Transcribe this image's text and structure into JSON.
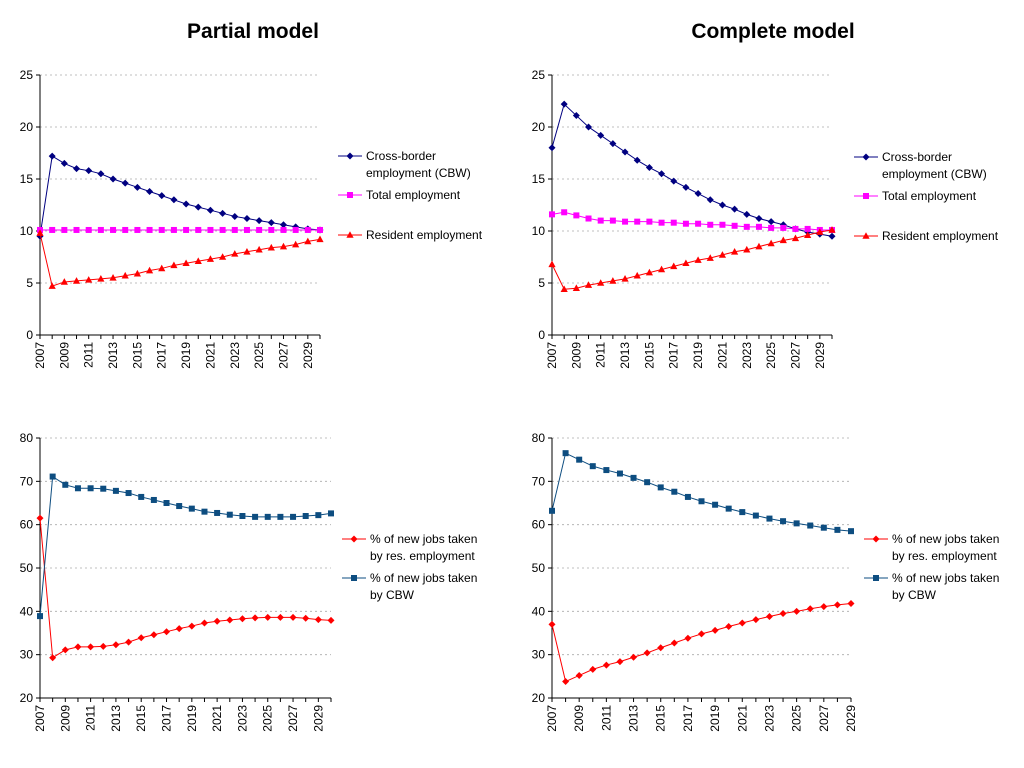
{
  "headings": {
    "left": "Partial model",
    "right": "Complete model"
  },
  "chart_data": [
    {
      "type": "line",
      "title": "",
      "ylim": [
        0,
        25
      ],
      "yticks": [
        0,
        5,
        10,
        15,
        20,
        25
      ],
      "xticks": [
        "2007",
        "2009",
        "2011",
        "2013",
        "2015",
        "2017",
        "2019",
        "2021",
        "2023",
        "2025",
        "2027",
        "2029"
      ],
      "x": [
        2007,
        2008,
        2009,
        2010,
        2011,
        2012,
        2013,
        2014,
        2015,
        2016,
        2017,
        2018,
        2019,
        2020,
        2021,
        2022,
        2023,
        2024,
        2025,
        2026,
        2027,
        2028,
        2029,
        2030
      ],
      "grid": true,
      "legend_position": "right",
      "series": [
        {
          "name": "Cross-border employment (CBW)",
          "legend_lines": [
            "Cross-border",
            "employment (CBW)"
          ],
          "color": "#000080",
          "marker": "diamond",
          "values": [
            9.5,
            17.2,
            16.5,
            16.0,
            15.8,
            15.5,
            15.0,
            14.6,
            14.2,
            13.8,
            13.4,
            13.0,
            12.6,
            12.3,
            12.0,
            11.7,
            11.4,
            11.2,
            11.0,
            10.8,
            10.6,
            10.4,
            10.2,
            10.1
          ]
        },
        {
          "name": "Total employment",
          "legend_lines": [
            "Total employment"
          ],
          "color": "#ff00ff",
          "marker": "square",
          "values": [
            10.1,
            10.1,
            10.1,
            10.1,
            10.1,
            10.1,
            10.1,
            10.1,
            10.1,
            10.1,
            10.1,
            10.1,
            10.1,
            10.1,
            10.1,
            10.1,
            10.1,
            10.1,
            10.1,
            10.1,
            10.1,
            10.1,
            10.1,
            10.1
          ]
        },
        {
          "name": "Resident employment",
          "legend_lines": [
            "Resident employment"
          ],
          "color": "#ff0000",
          "marker": "triangle",
          "values": [
            9.8,
            4.7,
            5.1,
            5.2,
            5.3,
            5.4,
            5.5,
            5.7,
            5.9,
            6.2,
            6.4,
            6.7,
            6.9,
            7.1,
            7.3,
            7.5,
            7.8,
            8.0,
            8.2,
            8.4,
            8.5,
            8.7,
            9.0,
            9.2
          ]
        }
      ]
    },
    {
      "type": "line",
      "title": "",
      "ylim": [
        0,
        25
      ],
      "yticks": [
        0,
        5,
        10,
        15,
        20,
        25
      ],
      "xticks": [
        "2007",
        "2009",
        "2011",
        "2013",
        "2015",
        "2017",
        "2019",
        "2021",
        "2023",
        "2025",
        "2027",
        "2029"
      ],
      "x": [
        2007,
        2008,
        2009,
        2010,
        2011,
        2012,
        2013,
        2014,
        2015,
        2016,
        2017,
        2018,
        2019,
        2020,
        2021,
        2022,
        2023,
        2024,
        2025,
        2026,
        2027,
        2028,
        2029,
        2030
      ],
      "grid": true,
      "legend_position": "right",
      "series": [
        {
          "name": "Cross-border employment (CBW)",
          "legend_lines": [
            "Cross-border",
            "employment (CBW)"
          ],
          "color": "#000080",
          "marker": "diamond",
          "values": [
            18.0,
            22.2,
            21.1,
            20.0,
            19.2,
            18.4,
            17.6,
            16.8,
            16.1,
            15.5,
            14.8,
            14.2,
            13.6,
            13.0,
            12.5,
            12.1,
            11.6,
            11.2,
            10.9,
            10.6,
            10.2,
            9.9,
            9.7,
            9.5
          ]
        },
        {
          "name": "Total employment",
          "legend_lines": [
            "Total employment"
          ],
          "color": "#ff00ff",
          "marker": "square",
          "values": [
            11.6,
            11.8,
            11.5,
            11.2,
            11.0,
            11.0,
            10.9,
            10.9,
            10.9,
            10.8,
            10.8,
            10.7,
            10.7,
            10.6,
            10.6,
            10.5,
            10.4,
            10.4,
            10.3,
            10.3,
            10.2,
            10.2,
            10.1,
            10.1
          ]
        },
        {
          "name": "Resident employment",
          "legend_lines": [
            "Resident employment"
          ],
          "color": "#ff0000",
          "marker": "triangle",
          "values": [
            6.8,
            4.4,
            4.5,
            4.8,
            5.0,
            5.2,
            5.4,
            5.7,
            6.0,
            6.3,
            6.6,
            6.9,
            7.2,
            7.4,
            7.7,
            8.0,
            8.2,
            8.5,
            8.8,
            9.1,
            9.3,
            9.6,
            9.9,
            10.1
          ]
        }
      ]
    },
    {
      "type": "line",
      "title": "",
      "ylim": [
        20,
        80
      ],
      "yticks": [
        20,
        30,
        40,
        50,
        60,
        70,
        80
      ],
      "xticks": [
        "2007",
        "2009",
        "2011",
        "2013",
        "2015",
        "2017",
        "2019",
        "2021",
        "2023",
        "2025",
        "2027",
        "2029"
      ],
      "x": [
        2007,
        2008,
        2009,
        2010,
        2011,
        2012,
        2013,
        2014,
        2015,
        2016,
        2017,
        2018,
        2019,
        2020,
        2021,
        2022,
        2023,
        2024,
        2025,
        2026,
        2027,
        2028,
        2029,
        2030
      ],
      "grid": true,
      "legend_position": "right",
      "series": [
        {
          "name": "% of new jobs taken by res. employment",
          "legend_lines": [
            "% of new jobs taken",
            "by res. employment"
          ],
          "color": "#ff0000",
          "marker": "diamond",
          "values": [
            61.5,
            29.3,
            31.1,
            31.8,
            31.8,
            31.9,
            32.3,
            32.9,
            33.9,
            34.6,
            35.3,
            36.0,
            36.6,
            37.3,
            37.7,
            38.0,
            38.3,
            38.5,
            38.6,
            38.6,
            38.6,
            38.4,
            38.1,
            37.9
          ]
        },
        {
          "name": "% of new jobs taken by CBW",
          "legend_lines": [
            "% of new jobs taken",
            "by CBW"
          ],
          "color": "#0d4d80",
          "marker": "square",
          "values": [
            38.9,
            71.1,
            69.2,
            68.4,
            68.4,
            68.3,
            67.8,
            67.3,
            66.4,
            65.7,
            65.0,
            64.3,
            63.7,
            63.0,
            62.7,
            62.3,
            62.0,
            61.8,
            61.8,
            61.8,
            61.8,
            62.0,
            62.2,
            62.6
          ]
        }
      ]
    },
    {
      "type": "line",
      "title": "",
      "ylim": [
        20,
        80
      ],
      "yticks": [
        20,
        30,
        40,
        50,
        60,
        70,
        80
      ],
      "xticks": [
        "2007",
        "2009",
        "2011",
        "2013",
        "2015",
        "2017",
        "2019",
        "2021",
        "2023",
        "2025",
        "2027",
        "2029"
      ],
      "x": [
        2007,
        2008,
        2009,
        2010,
        2011,
        2012,
        2013,
        2014,
        2015,
        2016,
        2017,
        2018,
        2019,
        2020,
        2021,
        2022,
        2023,
        2024,
        2025,
        2026,
        2027,
        2028,
        2029
      ],
      "grid": true,
      "legend_position": "right",
      "series": [
        {
          "name": "% of new jobs taken by res. employment",
          "legend_lines": [
            "% of new jobs taken",
            "by res. employment"
          ],
          "color": "#ff0000",
          "marker": "diamond",
          "values": [
            37.0,
            23.8,
            25.2,
            26.6,
            27.6,
            28.4,
            29.4,
            30.4,
            31.6,
            32.7,
            33.8,
            34.8,
            35.6,
            36.5,
            37.3,
            38.1,
            38.8,
            39.5,
            40.0,
            40.6,
            41.1,
            41.5,
            41.8
          ]
        },
        {
          "name": "% of new jobs taken by CBW",
          "legend_lines": [
            "% of new jobs taken",
            "by CBW"
          ],
          "color": "#0d4d80",
          "marker": "square",
          "values": [
            63.2,
            76.5,
            75.0,
            73.5,
            72.6,
            71.8,
            70.8,
            69.8,
            68.6,
            67.6,
            66.4,
            65.4,
            64.6,
            63.7,
            62.9,
            62.1,
            61.4,
            60.8,
            60.3,
            59.8,
            59.3,
            58.8,
            58.5
          ]
        }
      ]
    }
  ]
}
